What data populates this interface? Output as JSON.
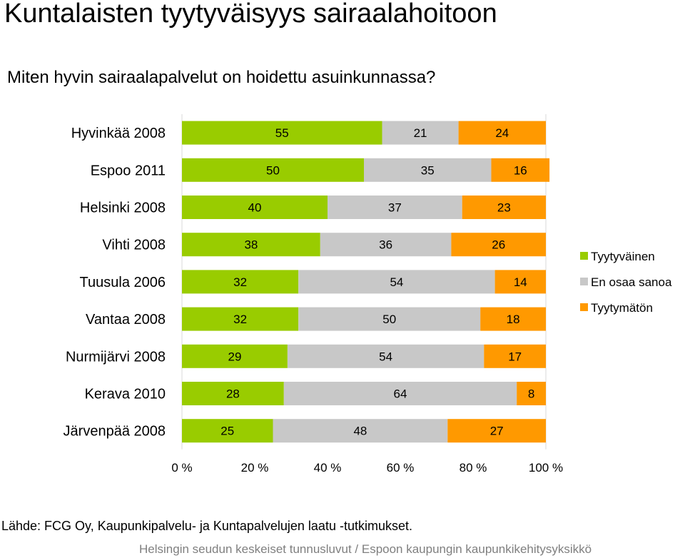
{
  "title": "Kuntalaisten tyytyväisyys sairaalahoitoon",
  "subtitle": "Miten hyvin sairaalapalvelut on hoidettu asuinkunnassa?",
  "source": "Lähde: FCG Oy, Kaupunkipalvelu- ja Kuntapalvelujen laatu -tutkimukset.",
  "footer": "Helsingin seudun keskeiset tunnusluvut / Espoon kaupungin kaupunkikehitysyksikkö",
  "colors": {
    "Tyytyväinen": "#99cc00",
    "En osaa sanoa": "#c8c8c8",
    "Tyytymätön": "#ff9900"
  },
  "chart_data": {
    "type": "bar",
    "orientation": "horizontal",
    "stacked": "percent",
    "categories": [
      "Hyvinkää 2008",
      "Espoo 2011",
      "Helsinki 2008",
      "Vihti 2008",
      "Tuusula 2006",
      "Vantaa 2008",
      "Nurmijärvi 2008",
      "Kerava 2010",
      "Järvenpää 2008"
    ],
    "series": [
      {
        "name": "Tyytyväinen",
        "values": [
          55,
          50,
          40,
          38,
          32,
          32,
          29,
          28,
          25
        ]
      },
      {
        "name": "En osaa sanoa",
        "values": [
          21,
          35,
          37,
          36,
          54,
          50,
          54,
          64,
          48
        ]
      },
      {
        "name": "Tyytymätön",
        "values": [
          24,
          16,
          23,
          26,
          14,
          18,
          17,
          8,
          27
        ]
      }
    ],
    "x_ticks": [
      "0 %",
      "20 %",
      "40 %",
      "60 %",
      "80 %",
      "100 %"
    ],
    "xlim": [
      0,
      100
    ],
    "grid": false,
    "legend_position": "right"
  }
}
